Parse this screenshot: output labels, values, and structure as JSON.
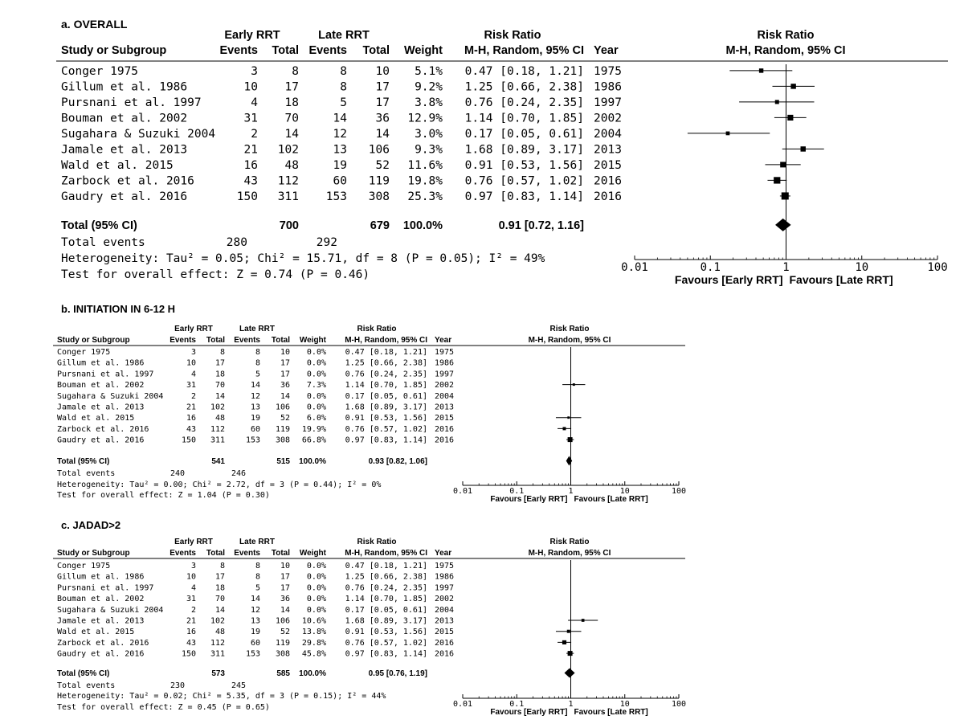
{
  "panels": [
    {
      "title": "a. OVERALL",
      "header": {
        "early_group": "Early RRT",
        "late_group": "Late RRT",
        "rr_group": "Risk Ratio",
        "study_col": "Study or Subgroup",
        "events": "Events",
        "total": "Total",
        "weight": "Weight",
        "method": "M-H, Random, 95% CI",
        "year": "Year",
        "plot_title": "Risk Ratio",
        "plot_method": "M-H, Random, 95% CI"
      },
      "rows": [
        {
          "study": "Conger 1975",
          "e_ev": "3",
          "e_tot": "8",
          "l_ev": "8",
          "l_tot": "10",
          "weight": "5.1%",
          "ci": "0.47 [0.18, 1.21]",
          "year": "1975"
        },
        {
          "study": "Gillum et al. 1986",
          "e_ev": "10",
          "e_tot": "17",
          "l_ev": "8",
          "l_tot": "17",
          "weight": "9.2%",
          "ci": "1.25 [0.66, 2.38]",
          "year": "1986"
        },
        {
          "study": "Pursnani et al. 1997",
          "e_ev": "4",
          "e_tot": "18",
          "l_ev": "5",
          "l_tot": "17",
          "weight": "3.8%",
          "ci": "0.76 [0.24, 2.35]",
          "year": "1997"
        },
        {
          "study": "Bouman et al. 2002",
          "e_ev": "31",
          "e_tot": "70",
          "l_ev": "14",
          "l_tot": "36",
          "weight": "12.9%",
          "ci": "1.14 [0.70, 1.85]",
          "year": "2002"
        },
        {
          "study": "Sugahara & Suzuki 2004",
          "e_ev": "2",
          "e_tot": "14",
          "l_ev": "12",
          "l_tot": "14",
          "weight": "3.0%",
          "ci": "0.17 [0.05, 0.61]",
          "year": "2004"
        },
        {
          "study": "Jamale et al. 2013",
          "e_ev": "21",
          "e_tot": "102",
          "l_ev": "13",
          "l_tot": "106",
          "weight": "9.3%",
          "ci": "1.68 [0.89, 3.17]",
          "year": "2013"
        },
        {
          "study": "Wald et al. 2015",
          "e_ev": "16",
          "e_tot": "48",
          "l_ev": "19",
          "l_tot": "52",
          "weight": "11.6%",
          "ci": "0.91 [0.53, 1.56]",
          "year": "2015"
        },
        {
          "study": "Zarbock et al. 2016",
          "e_ev": "43",
          "e_tot": "112",
          "l_ev": "60",
          "l_tot": "119",
          "weight": "19.8%",
          "ci": "0.76 [0.57, 1.02]",
          "year": "2016"
        },
        {
          "study": "Gaudry et al. 2016",
          "e_ev": "150",
          "e_tot": "311",
          "l_ev": "153",
          "l_tot": "308",
          "weight": "25.3%",
          "ci": "0.97 [0.83, 1.14]",
          "year": "2016"
        }
      ],
      "total": {
        "label": "Total (95% CI)",
        "e_tot": "700",
        "l_tot": "679",
        "weight": "100.0%",
        "ci": "0.91 [0.72, 1.16]"
      },
      "total_events": {
        "label": "Total events",
        "early": "280",
        "late": "292"
      },
      "heterogeneity": "Heterogeneity: Tau² = 0.05; Chi² = 15.71, df = 8 (P = 0.05); I² = 49%",
      "overall_effect": "Test for overall effect: Z = 0.74 (P = 0.46)",
      "axis": {
        "ticks": [
          "0.01",
          "0.1",
          "1",
          "10",
          "100"
        ],
        "favours_left": "Favours [Early RRT]",
        "favours_right": "Favours [Late RRT]"
      }
    },
    {
      "title": "b. INITIATION IN 6-12 H",
      "header": {
        "early_group": "Early RRT",
        "late_group": "Late RRT",
        "rr_group": "Risk Ratio",
        "study_col": "Study or Subgroup",
        "events": "Events",
        "total": "Total",
        "weight": "Weight",
        "method": "M-H, Random, 95% CI",
        "year": "Year",
        "plot_title": "Risk Ratio",
        "plot_method": "M-H, Random, 95% CI"
      },
      "rows": [
        {
          "study": "Conger 1975",
          "e_ev": "3",
          "e_tot": "8",
          "l_ev": "8",
          "l_tot": "10",
          "weight": "0.0%",
          "ci": "0.47 [0.18, 1.21]",
          "year": "1975"
        },
        {
          "study": "Gillum et al. 1986",
          "e_ev": "10",
          "e_tot": "17",
          "l_ev": "8",
          "l_tot": "17",
          "weight": "0.0%",
          "ci": "1.25 [0.66, 2.38]",
          "year": "1986"
        },
        {
          "study": "Pursnani et al. 1997",
          "e_ev": "4",
          "e_tot": "18",
          "l_ev": "5",
          "l_tot": "17",
          "weight": "0.0%",
          "ci": "0.76 [0.24, 2.35]",
          "year": "1997"
        },
        {
          "study": "Bouman et al. 2002",
          "e_ev": "31",
          "e_tot": "70",
          "l_ev": "14",
          "l_tot": "36",
          "weight": "7.3%",
          "ci": "1.14 [0.70, 1.85]",
          "year": "2002"
        },
        {
          "study": "Sugahara & Suzuki 2004",
          "e_ev": "2",
          "e_tot": "14",
          "l_ev": "12",
          "l_tot": "14",
          "weight": "0.0%",
          "ci": "0.17 [0.05, 0.61]",
          "year": "2004"
        },
        {
          "study": "Jamale et al. 2013",
          "e_ev": "21",
          "e_tot": "102",
          "l_ev": "13",
          "l_tot": "106",
          "weight": "0.0%",
          "ci": "1.68 [0.89, 3.17]",
          "year": "2013"
        },
        {
          "study": "Wald et al. 2015",
          "e_ev": "16",
          "e_tot": "48",
          "l_ev": "19",
          "l_tot": "52",
          "weight": "6.0%",
          "ci": "0.91 [0.53, 1.56]",
          "year": "2015"
        },
        {
          "study": "Zarbock et al. 2016",
          "e_ev": "43",
          "e_tot": "112",
          "l_ev": "60",
          "l_tot": "119",
          "weight": "19.9%",
          "ci": "0.76 [0.57, 1.02]",
          "year": "2016"
        },
        {
          "study": "Gaudry et al. 2016",
          "e_ev": "150",
          "e_tot": "311",
          "l_ev": "153",
          "l_tot": "308",
          "weight": "66.8%",
          "ci": "0.97 [0.83, 1.14]",
          "year": "2016"
        }
      ],
      "total": {
        "label": "Total (95% CI)",
        "e_tot": "541",
        "l_tot": "515",
        "weight": "100.0%",
        "ci": "0.93 [0.82, 1.06]"
      },
      "total_events": {
        "label": "Total events",
        "early": "240",
        "late": "246"
      },
      "heterogeneity": "Heterogeneity: Tau² = 0.00; Chi² = 2.72, df = 3 (P = 0.44); I² = 0%",
      "overall_effect": "Test for overall effect: Z = 1.04 (P = 0.30)",
      "axis": {
        "ticks": [
          "0.01",
          "0.1",
          "1",
          "10",
          "100"
        ],
        "favours_left": "Favours [Early RRT]",
        "favours_right": "Favours [Late RRT]"
      }
    },
    {
      "title": "c. JADAD>2",
      "header": {
        "early_group": "Early RRT",
        "late_group": "Late RRT",
        "rr_group": "Risk Ratio",
        "study_col": "Study or Subgroup",
        "events": "Events",
        "total": "Total",
        "weight": "Weight",
        "method": "M-H, Random, 95% CI",
        "year": "Year",
        "plot_title": "Risk Ratio",
        "plot_method": "M-H, Random, 95% CI"
      },
      "rows": [
        {
          "study": "Conger 1975",
          "e_ev": "3",
          "e_tot": "8",
          "l_ev": "8",
          "l_tot": "10",
          "weight": "0.0%",
          "ci": "0.47 [0.18, 1.21]",
          "year": "1975"
        },
        {
          "study": "Gillum et al. 1986",
          "e_ev": "10",
          "e_tot": "17",
          "l_ev": "8",
          "l_tot": "17",
          "weight": "0.0%",
          "ci": "1.25 [0.66, 2.38]",
          "year": "1986"
        },
        {
          "study": "Pursnani et al. 1997",
          "e_ev": "4",
          "e_tot": "18",
          "l_ev": "5",
          "l_tot": "17",
          "weight": "0.0%",
          "ci": "0.76 [0.24, 2.35]",
          "year": "1997"
        },
        {
          "study": "Bouman et al. 2002",
          "e_ev": "31",
          "e_tot": "70",
          "l_ev": "14",
          "l_tot": "36",
          "weight": "0.0%",
          "ci": "1.14 [0.70, 1.85]",
          "year": "2002"
        },
        {
          "study": "Sugahara & Suzuki 2004",
          "e_ev": "2",
          "e_tot": "14",
          "l_ev": "12",
          "l_tot": "14",
          "weight": "0.0%",
          "ci": "0.17 [0.05, 0.61]",
          "year": "2004"
        },
        {
          "study": "Jamale et al. 2013",
          "e_ev": "21",
          "e_tot": "102",
          "l_ev": "13",
          "l_tot": "106",
          "weight": "10.6%",
          "ci": "1.68 [0.89, 3.17]",
          "year": "2013"
        },
        {
          "study": "Wald et al. 2015",
          "e_ev": "16",
          "e_tot": "48",
          "l_ev": "19",
          "l_tot": "52",
          "weight": "13.8%",
          "ci": "0.91 [0.53, 1.56]",
          "year": "2015"
        },
        {
          "study": "Zarbock et al. 2016",
          "e_ev": "43",
          "e_tot": "112",
          "l_ev": "60",
          "l_tot": "119",
          "weight": "29.8%",
          "ci": "0.76 [0.57, 1.02]",
          "year": "2016"
        },
        {
          "study": "Gaudry et al. 2016",
          "e_ev": "150",
          "e_tot": "311",
          "l_ev": "153",
          "l_tot": "308",
          "weight": "45.8%",
          "ci": "0.97 [0.83, 1.14]",
          "year": "2016"
        }
      ],
      "total": {
        "label": "Total (95% CI)",
        "e_tot": "573",
        "l_tot": "585",
        "weight": "100.0%",
        "ci": "0.95 [0.76, 1.19]"
      },
      "total_events": {
        "label": "Total events",
        "early": "230",
        "late": "245"
      },
      "heterogeneity": "Heterogeneity: Tau² = 0.02; Chi² = 5.35, df = 3 (P = 0.15); I² = 44%",
      "overall_effect": "Test for overall effect: Z = 0.45 (P = 0.65)",
      "axis": {
        "ticks": [
          "0.01",
          "0.1",
          "1",
          "10",
          "100"
        ],
        "favours_left": "Favours [Early RRT]",
        "favours_right": "Favours [Late RRT]"
      }
    }
  ],
  "chart_data": [
    {
      "type": "forest",
      "title": "a. OVERALL",
      "x_scale": "log",
      "xlim": [
        0.01,
        100
      ],
      "reference_line": 1,
      "studies": [
        {
          "name": "Conger 1975",
          "rr": 0.47,
          "lo": 0.18,
          "hi": 1.21,
          "weight": 5.1
        },
        {
          "name": "Gillum et al. 1986",
          "rr": 1.25,
          "lo": 0.66,
          "hi": 2.38,
          "weight": 9.2
        },
        {
          "name": "Pursnani et al. 1997",
          "rr": 0.76,
          "lo": 0.24,
          "hi": 2.35,
          "weight": 3.8
        },
        {
          "name": "Bouman et al. 2002",
          "rr": 1.14,
          "lo": 0.7,
          "hi": 1.85,
          "weight": 12.9
        },
        {
          "name": "Sugahara & Suzuki 2004",
          "rr": 0.17,
          "lo": 0.05,
          "hi": 0.61,
          "weight": 3.0
        },
        {
          "name": "Jamale et al. 2013",
          "rr": 1.68,
          "lo": 0.89,
          "hi": 3.17,
          "weight": 9.3
        },
        {
          "name": "Wald et al. 2015",
          "rr": 0.91,
          "lo": 0.53,
          "hi": 1.56,
          "weight": 11.6
        },
        {
          "name": "Zarbock et al. 2016",
          "rr": 0.76,
          "lo": 0.57,
          "hi": 1.02,
          "weight": 19.8
        },
        {
          "name": "Gaudry et al. 2016",
          "rr": 0.97,
          "lo": 0.83,
          "hi": 1.14,
          "weight": 25.3
        }
      ],
      "pooled": {
        "rr": 0.91,
        "lo": 0.72,
        "hi": 1.16
      }
    },
    {
      "type": "forest",
      "title": "b. INITIATION IN 6-12 H",
      "x_scale": "log",
      "xlim": [
        0.01,
        100
      ],
      "reference_line": 1,
      "studies": [
        {
          "name": "Conger 1975",
          "rr": 0.47,
          "lo": 0.18,
          "hi": 1.21,
          "weight": 0.0
        },
        {
          "name": "Gillum et al. 1986",
          "rr": 1.25,
          "lo": 0.66,
          "hi": 2.38,
          "weight": 0.0
        },
        {
          "name": "Pursnani et al. 1997",
          "rr": 0.76,
          "lo": 0.24,
          "hi": 2.35,
          "weight": 0.0
        },
        {
          "name": "Bouman et al. 2002",
          "rr": 1.14,
          "lo": 0.7,
          "hi": 1.85,
          "weight": 7.3
        },
        {
          "name": "Sugahara & Suzuki 2004",
          "rr": 0.17,
          "lo": 0.05,
          "hi": 0.61,
          "weight": 0.0
        },
        {
          "name": "Jamale et al. 2013",
          "rr": 1.68,
          "lo": 0.89,
          "hi": 3.17,
          "weight": 0.0
        },
        {
          "name": "Wald et al. 2015",
          "rr": 0.91,
          "lo": 0.53,
          "hi": 1.56,
          "weight": 6.0
        },
        {
          "name": "Zarbock et al. 2016",
          "rr": 0.76,
          "lo": 0.57,
          "hi": 1.02,
          "weight": 19.9
        },
        {
          "name": "Gaudry et al. 2016",
          "rr": 0.97,
          "lo": 0.83,
          "hi": 1.14,
          "weight": 66.8
        }
      ],
      "pooled": {
        "rr": 0.93,
        "lo": 0.82,
        "hi": 1.06
      }
    },
    {
      "type": "forest",
      "title": "c. JADAD>2",
      "x_scale": "log",
      "xlim": [
        0.01,
        100
      ],
      "reference_line": 1,
      "studies": [
        {
          "name": "Conger 1975",
          "rr": 0.47,
          "lo": 0.18,
          "hi": 1.21,
          "weight": 0.0
        },
        {
          "name": "Gillum et al. 1986",
          "rr": 1.25,
          "lo": 0.66,
          "hi": 2.38,
          "weight": 0.0
        },
        {
          "name": "Pursnani et al. 1997",
          "rr": 0.76,
          "lo": 0.24,
          "hi": 2.35,
          "weight": 0.0
        },
        {
          "name": "Bouman et al. 2002",
          "rr": 1.14,
          "lo": 0.7,
          "hi": 1.85,
          "weight": 0.0
        },
        {
          "name": "Sugahara & Suzuki 2004",
          "rr": 0.17,
          "lo": 0.05,
          "hi": 0.61,
          "weight": 0.0
        },
        {
          "name": "Jamale et al. 2013",
          "rr": 1.68,
          "lo": 0.89,
          "hi": 3.17,
          "weight": 10.6
        },
        {
          "name": "Wald et al. 2015",
          "rr": 0.91,
          "lo": 0.53,
          "hi": 1.56,
          "weight": 13.8
        },
        {
          "name": "Zarbock et al. 2016",
          "rr": 0.76,
          "lo": 0.57,
          "hi": 1.02,
          "weight": 29.8
        },
        {
          "name": "Gaudry et al. 2016",
          "rr": 0.97,
          "lo": 0.83,
          "hi": 1.14,
          "weight": 45.8
        }
      ],
      "pooled": {
        "rr": 0.95,
        "lo": 0.76,
        "hi": 1.19
      }
    }
  ]
}
